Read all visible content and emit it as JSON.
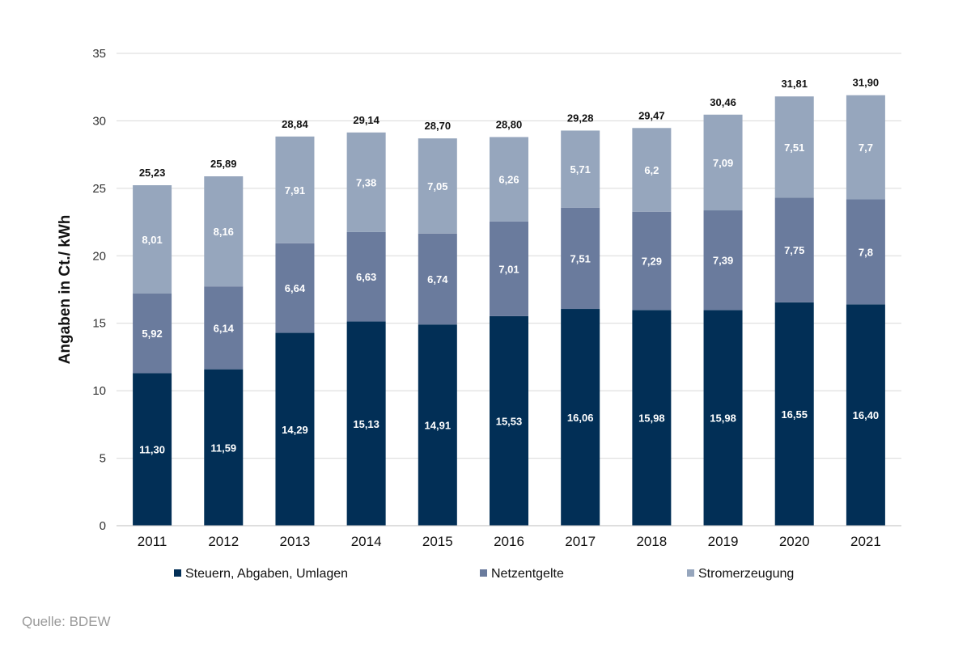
{
  "chart_data": {
    "type": "bar",
    "stacked": true,
    "categories": [
      "2011",
      "2012",
      "2013",
      "2014",
      "2015",
      "2016",
      "2017",
      "2018",
      "2019",
      "2020",
      "2021"
    ],
    "series": [
      {
        "name": "Steuern, Abgaben, Umlagen",
        "color": "#022f56",
        "values": [
          11.3,
          11.59,
          14.29,
          15.13,
          14.91,
          15.53,
          16.06,
          15.98,
          15.98,
          16.55,
          16.4
        ],
        "labels": [
          "11,30",
          "11,59",
          "14,29",
          "15,13",
          "14,91",
          "15,53",
          "16,06",
          "15,98",
          "15,98",
          "16,55",
          "16,40"
        ]
      },
      {
        "name": "Netzentgelte",
        "color": "#6a7b9d",
        "values": [
          5.92,
          6.14,
          6.64,
          6.63,
          6.74,
          7.01,
          7.51,
          7.29,
          7.39,
          7.75,
          7.8
        ],
        "labels": [
          "5,92",
          "6,14",
          "6,64",
          "6,63",
          "6,74",
          "7,01",
          "7,51",
          "7,29",
          "7,39",
          "7,75",
          "7,8"
        ]
      },
      {
        "name": "Stromerzeugung",
        "color": "#96a6bd",
        "values": [
          8.01,
          8.16,
          7.91,
          7.38,
          7.05,
          6.26,
          5.71,
          6.2,
          7.09,
          7.51,
          7.7
        ],
        "labels": [
          "8,01",
          "8,16",
          "7,91",
          "7,38",
          "7,05",
          "6,26",
          "5,71",
          "6,2",
          "7,09",
          "7,51",
          "7,7"
        ]
      }
    ],
    "totals": [
      "25,23",
      "25,89",
      "28,84",
      "29,14",
      "28,70",
      "28,80",
      "29,28",
      "29,47",
      "30,46",
      "31,81",
      "31,90"
    ],
    "ylabel": "Angaben in Ct./ kWh",
    "ylim": [
      0,
      35
    ],
    "yticks": [
      "0",
      "5",
      "10",
      "15",
      "20",
      "25",
      "30",
      "35"
    ],
    "grid": true,
    "legend_position": "bottom"
  },
  "source": "Quelle: BDEW"
}
